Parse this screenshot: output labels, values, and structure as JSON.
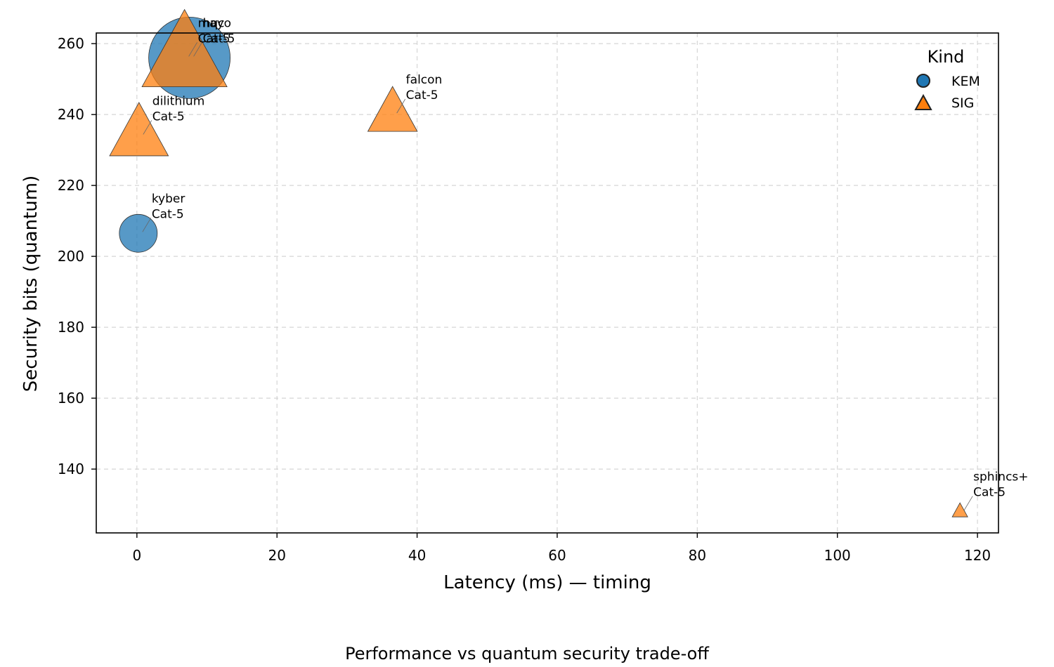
{
  "colors": {
    "KEM": "#1f77b4",
    "SIG": "#ff7f0e"
  },
  "caption": "Performance vs quantum security trade-off",
  "chart_data": {
    "type": "scatter",
    "xlabel": "Latency (ms) — timing",
    "ylabel": "Security bits (quantum)",
    "xlim": [
      -5.8,
      123
    ],
    "ylim": [
      122,
      263
    ],
    "xticks": [
      0,
      20,
      40,
      60,
      80,
      100,
      120
    ],
    "yticks": [
      140,
      160,
      180,
      200,
      220,
      240,
      260
    ],
    "grid": true,
    "legend": {
      "title": "Kind",
      "placement": "top-right",
      "entries": [
        {
          "label": "KEM",
          "marker": "circle"
        },
        {
          "label": "SIG",
          "marker": "triangle"
        }
      ]
    },
    "points": [
      {
        "name": "hqc",
        "category": "Cat-5",
        "kind": "KEM",
        "x": 7.5,
        "y": 256,
        "size": 58
      },
      {
        "name": "kyber",
        "category": "Cat-5",
        "kind": "KEM",
        "x": 0.2,
        "y": 206.5,
        "size": 27
      },
      {
        "name": "mayo",
        "category": "Cat-5",
        "kind": "SIG",
        "x": 6.8,
        "y": 256,
        "size": 55
      },
      {
        "name": "dilithium",
        "category": "Cat-5",
        "kind": "SIG",
        "x": 0.3,
        "y": 234,
        "size": 38
      },
      {
        "name": "falcon",
        "category": "Cat-5",
        "kind": "SIG",
        "x": 36.5,
        "y": 240,
        "size": 32
      },
      {
        "name": "sphincs+",
        "category": "Cat-5",
        "kind": "SIG",
        "x": 117.5,
        "y": 128,
        "size": 10
      }
    ]
  }
}
